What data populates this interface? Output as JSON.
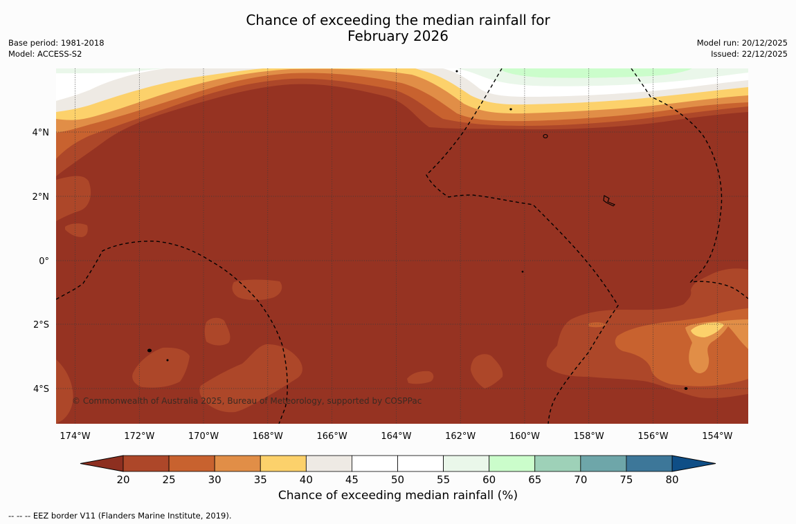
{
  "title": {
    "line1": "Chance of exceeding the median rainfall for",
    "line2": "February 2026"
  },
  "meta_left": {
    "base_period": "Base period: 1981-2018",
    "model": "Model: ACCESS-S2"
  },
  "meta_right": {
    "model_run": "Model run: 20/12/2025",
    "issued": "Issued: 22/12/2025"
  },
  "map": {
    "y_ticks": [
      "4°N",
      "2°N",
      "0°",
      "2°S",
      "4°S"
    ],
    "x_ticks": [
      "174°W",
      "172°W",
      "170°W",
      "168°W",
      "166°W",
      "164°W",
      "162°W",
      "160°W",
      "158°W",
      "156°W",
      "154°W"
    ],
    "copyright": "© Commonwealth of Australia 2025, Bureau of Meteorology, supported by COSPPac",
    "colors": {
      "c20_25": "#ad4729",
      "c25_30": "#c8622f",
      "c30_35": "#e18e47",
      "c35_40": "#fcd16b",
      "c40_45": "#eeeae4",
      "c45_55": "#ffffff",
      "c55_60": "#eaf7ea",
      "c60_65": "#cbfdcb",
      "below20": "#963322"
    }
  },
  "colorbar": {
    "ticks": [
      "20",
      "25",
      "30",
      "35",
      "40",
      "45",
      "50",
      "55",
      "60",
      "65",
      "70",
      "75",
      "80"
    ],
    "colors": [
      "#ad4729",
      "#c8622f",
      "#e18e47",
      "#fcd16b",
      "#eeeae4",
      "#ffffff",
      "#ffffff",
      "#eaf7ea",
      "#cbfdcb",
      "#9ed1b8",
      "#6ea6a9",
      "#3d7799"
    ],
    "under_color": "#8d2f20",
    "over_color": "#0f4e86",
    "label": "Chance of exceeding median rainfall (%)"
  },
  "footnote": "--  --  -- EEZ border V11 (Flanders Marine Institute, 2019)."
}
